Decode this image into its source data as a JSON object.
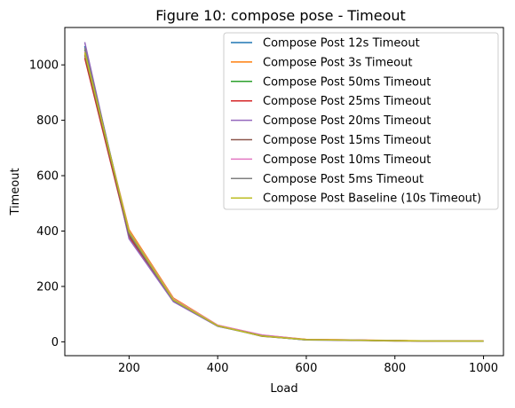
{
  "chart_data": {
    "type": "line",
    "title": "Figure 10: compose pose - Timeout",
    "xlabel": "Load",
    "ylabel": "Timeout",
    "xlim": [
      55,
      1045
    ],
    "ylim": [
      -50,
      1135
    ],
    "xticks": [
      200,
      400,
      600,
      800,
      1000
    ],
    "yticks": [
      0,
      200,
      400,
      600,
      800,
      1000
    ],
    "grid": false,
    "legend_position": "top-right",
    "x": [
      100,
      200,
      300,
      400,
      500,
      600,
      700,
      800,
      900,
      1000
    ],
    "series": [
      {
        "name": "Compose Post 12s Timeout",
        "color": "#1f77b4",
        "values": [
          1068,
          390,
          150,
          58,
          22,
          8,
          6,
          4,
          3,
          3
        ]
      },
      {
        "name": "Compose Post 3s Timeout",
        "color": "#ff7f0e",
        "values": [
          1040,
          405,
          158,
          60,
          24,
          9,
          7,
          5,
          3,
          3
        ]
      },
      {
        "name": "Compose Post 50ms Timeout",
        "color": "#2ca02c",
        "values": [
          1055,
          395,
          152,
          57,
          21,
          7,
          6,
          4,
          3,
          2
        ]
      },
      {
        "name": "Compose Post 25ms Timeout",
        "color": "#d62728",
        "values": [
          1025,
          380,
          148,
          58,
          23,
          8,
          6,
          4,
          3,
          3
        ]
      },
      {
        "name": "Compose Post 20ms Timeout",
        "color": "#9467bd",
        "values": [
          1082,
          372,
          145,
          56,
          22,
          7,
          5,
          4,
          3,
          2
        ]
      },
      {
        "name": "Compose Post 15ms Timeout",
        "color": "#8c564b",
        "values": [
          1035,
          385,
          150,
          59,
          20,
          8,
          6,
          3,
          3,
          3
        ]
      },
      {
        "name": "Compose Post 10ms Timeout",
        "color": "#e377c2",
        "values": [
          1050,
          400,
          155,
          60,
          25,
          8,
          7,
          4,
          3,
          3
        ]
      },
      {
        "name": "Compose Post 5ms Timeout",
        "color": "#7f7f7f",
        "values": [
          1062,
          392,
          149,
          57,
          22,
          7,
          6,
          4,
          3,
          2
        ]
      },
      {
        "name": "Compose Post Baseline (10s Timeout)",
        "color": "#bcbd22",
        "values": [
          1045,
          398,
          152,
          58,
          21,
          8,
          6,
          4,
          3,
          3
        ]
      }
    ]
  }
}
